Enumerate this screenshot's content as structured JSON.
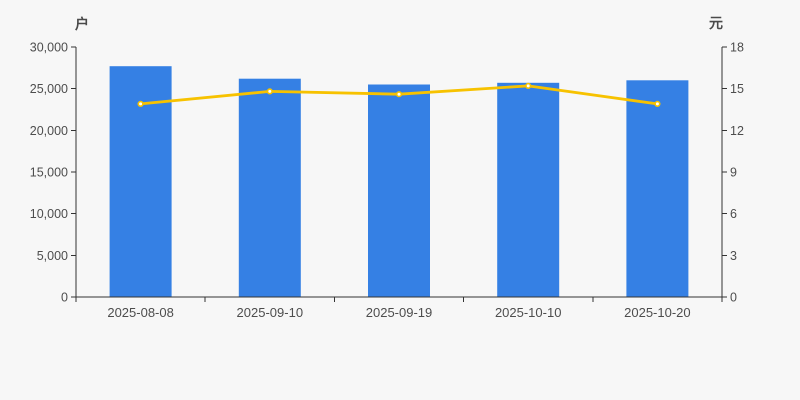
{
  "page": {
    "background": "#f7f7f7"
  },
  "chart_data": {
    "type": "bar",
    "categories": [
      "2025-08-08",
      "2025-09-10",
      "2025-09-19",
      "2025-10-10",
      "2025-10-20"
    ],
    "series": [
      {
        "id": "bar-series",
        "type": "bar",
        "axis": "left",
        "color": "#3580e4",
        "values": [
          27700,
          26200,
          25500,
          25700,
          26000
        ]
      },
      {
        "id": "line-series",
        "type": "line",
        "axis": "right",
        "color": "#f7c200",
        "marker": "circle-white-fill",
        "values": [
          13.9,
          14.8,
          14.6,
          15.2,
          13.9
        ]
      }
    ],
    "left_axis": {
      "name": "户",
      "min": 0,
      "max": 30000,
      "tick_step": 5000,
      "tick_labels": [
        "0",
        "5,000",
        "10,000",
        "15,000",
        "20,000",
        "25,000",
        "30,000"
      ]
    },
    "right_axis": {
      "name": "元",
      "min": 0,
      "max": 18,
      "tick_step": 3,
      "tick_labels": [
        "0",
        "3",
        "6",
        "9",
        "12",
        "15",
        "18"
      ]
    },
    "grid": false,
    "legend": false,
    "colors": {
      "axis_line": "#333333",
      "tick_text": "#4d4d4d",
      "axis_name_text": "#4a4a4a",
      "bar": "#3580e4",
      "line": "#f7c200",
      "marker_fill": "#ffffff",
      "background": "#f7f7f7"
    }
  }
}
